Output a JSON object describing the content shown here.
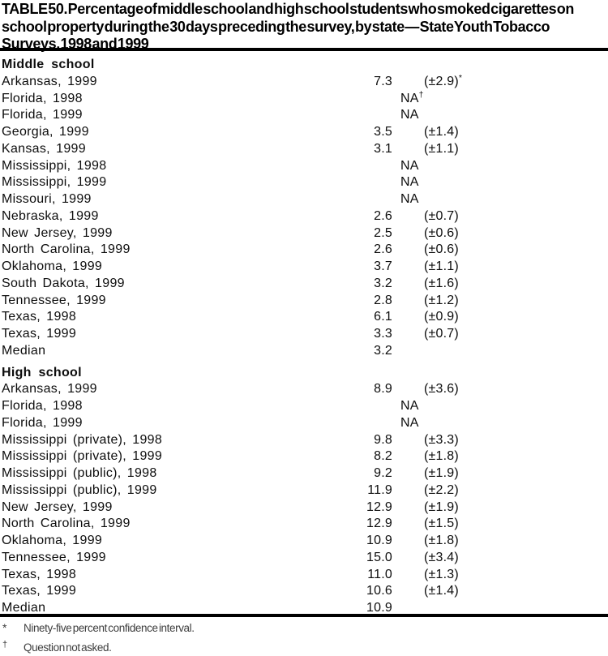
{
  "title_lines": [
    "TABLE 50. Percentage of middle school and high school students who smoked cigarettes on",
    "school property during the 30 days preceding the survey, by state — State Youth Tobacco",
    "Surveys, 1998 and 1999"
  ],
  "sections": [
    {
      "header": "Middle school",
      "rows": [
        {
          "label": "Arkansas, 1999",
          "value": "7.3",
          "ci": "(±2.9)",
          "ci_sup": "*"
        },
        {
          "label": "Florida, 1998",
          "value": "NA",
          "value_sup": "†"
        },
        {
          "label": "Florida, 1999",
          "value": "NA"
        },
        {
          "label": "Georgia, 1999",
          "value": "3.5",
          "ci": "(±1.4)"
        },
        {
          "label": "Kansas, 1999",
          "value": "3.1",
          "ci": "(±1.1)"
        },
        {
          "label": "Mississippi, 1998",
          "value": "NA"
        },
        {
          "label": "Mississippi, 1999",
          "value": "NA"
        },
        {
          "label": "Missouri, 1999",
          "value": "NA"
        },
        {
          "label": "Nebraska, 1999",
          "value": "2.6",
          "ci": "(±0.7)"
        },
        {
          "label": "New Jersey, 1999",
          "value": "2.5",
          "ci": "(±0.6)"
        },
        {
          "label": "North Carolina, 1999",
          "value": "2.6",
          "ci": "(±0.6)"
        },
        {
          "label": "Oklahoma, 1999",
          "value": "3.7",
          "ci": "(±1.1)"
        },
        {
          "label": "South Dakota, 1999",
          "value": "3.2",
          "ci": "(±1.6)"
        },
        {
          "label": "Tennessee, 1999",
          "value": "2.8",
          "ci": "(±1.2)"
        },
        {
          "label": "Texas, 1998",
          "value": "6.1",
          "ci": "(±0.9)"
        },
        {
          "label": "Texas, 1999",
          "value": "3.3",
          "ci": "(±0.7)"
        },
        {
          "label": "Median",
          "value": "3.2"
        }
      ]
    },
    {
      "header": "High school",
      "rows": [
        {
          "label": "Arkansas, 1999",
          "value": "8.9",
          "ci": "(±3.6)"
        },
        {
          "label": "Florida, 1998",
          "value": "NA"
        },
        {
          "label": "Florida, 1999",
          "value": "NA"
        },
        {
          "label": "Mississippi (private), 1998",
          "value": "9.8",
          "ci": "(±3.3)"
        },
        {
          "label": "Mississippi (private), 1999",
          "value": "8.2",
          "ci": "(±1.8)"
        },
        {
          "label": "Mississippi (public), 1998",
          "value": "9.2",
          "ci": "(±1.9)"
        },
        {
          "label": "Mississippi (public), 1999",
          "value": "11.9",
          "ci": "(±2.2)"
        },
        {
          "label": "New Jersey, 1999",
          "value": "12.9",
          "ci": "(±1.9)"
        },
        {
          "label": "North Carolina, 1999",
          "value": "12.9",
          "ci": "(±1.5)"
        },
        {
          "label": "Oklahoma, 1999",
          "value": "10.9",
          "ci": "(±1.8)"
        },
        {
          "label": "Tennessee, 1999",
          "value": "15.0",
          "ci": "(±3.4)"
        },
        {
          "label": "Texas, 1998",
          "value": "11.0",
          "ci": "(±1.3)"
        },
        {
          "label": "Texas, 1999",
          "value": "10.6",
          "ci": "(±1.4)"
        },
        {
          "label": "Median",
          "value": "10.9"
        }
      ]
    }
  ],
  "footnotes": [
    {
      "marker": "*",
      "superscript": false,
      "text": "Ninety-five percent confidence interval."
    },
    {
      "marker": "†",
      "superscript": true,
      "text": "Question not asked."
    }
  ],
  "colors": {
    "text": "#000000",
    "rule": "#000000",
    "footnote_text": "#3d3d3d",
    "background": "#ffffff"
  }
}
